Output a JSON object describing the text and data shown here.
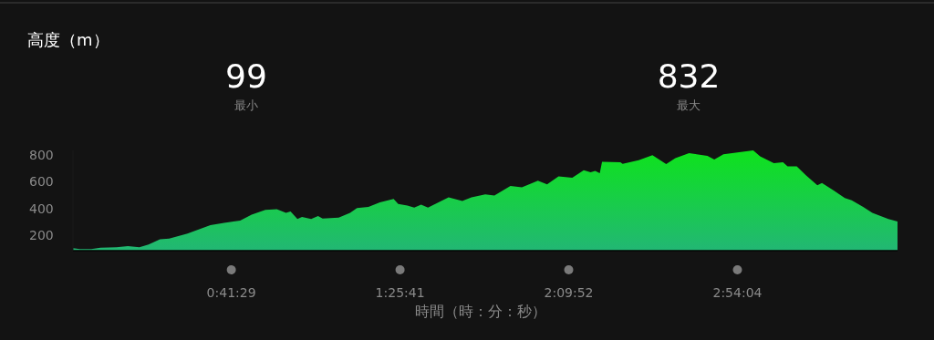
{
  "chart_data": {
    "type": "area",
    "title": "高度（m）",
    "xlabel": "時間（時：分：秒）",
    "annotations": [
      "99",
      "最小",
      "832",
      "最大"
    ],
    "x": [
      0.0,
      0.03,
      0.08,
      0.12,
      0.19,
      0.24,
      0.29,
      0.33,
      0.38,
      0.42,
      0.5,
      0.6,
      0.66,
      0.73,
      0.78,
      0.84,
      0.89,
      0.93,
      0.95,
      0.98,
      1.0,
      1.04,
      1.07,
      1.09,
      1.16,
      1.21,
      1.24,
      1.29,
      1.34,
      1.4,
      1.42,
      1.46,
      1.49,
      1.52,
      1.55,
      1.64,
      1.7,
      1.74,
      1.8,
      1.84,
      1.91,
      1.96,
      2.03,
      2.07,
      2.12,
      2.18,
      2.23,
      2.26,
      2.28,
      2.3,
      2.31,
      2.39,
      2.4,
      2.47,
      2.53,
      2.59,
      2.63,
      2.69,
      2.77,
      2.8,
      2.84,
      2.97,
      3.0,
      3.06,
      3.1,
      3.12,
      3.16,
      3.2,
      3.25,
      3.27,
      3.32,
      3.37,
      3.4,
      3.45,
      3.49,
      3.56,
      3.6
    ],
    "values": [
      106,
      99,
      99,
      110,
      113,
      121,
      113,
      133,
      173,
      177,
      215,
      278,
      294,
      311,
      356,
      390,
      395,
      368,
      378,
      323,
      338,
      323,
      345,
      327,
      334,
      368,
      405,
      412,
      446,
      472,
      435,
      423,
      408,
      430,
      408,
      484,
      457,
      484,
      506,
      497,
      569,
      558,
      607,
      580,
      640,
      629,
      685,
      670,
      680,
      663,
      748,
      744,
      732,
      759,
      797,
      730,
      774,
      811,
      792,
      764,
      804,
      832,
      788,
      737,
      744,
      714,
      714,
      647,
      573,
      591,
      536,
      479,
      462,
      412,
      368,
      323,
      305
    ],
    "color": "#0ee31c",
    "xticks": [
      {
        "value": 0.691389,
        "label": "0:41:29"
      },
      {
        "value": 1.428056,
        "label": "1:25:41"
      },
      {
        "value": 2.164444,
        "label": "2:09:52"
      },
      {
        "value": 2.901111,
        "label": "2:54:04"
      }
    ],
    "xlim": [
      0,
      3.6
    ],
    "ylim": [
      88,
      832
    ],
    "yticks": [
      200,
      400,
      600,
      800
    ]
  }
}
